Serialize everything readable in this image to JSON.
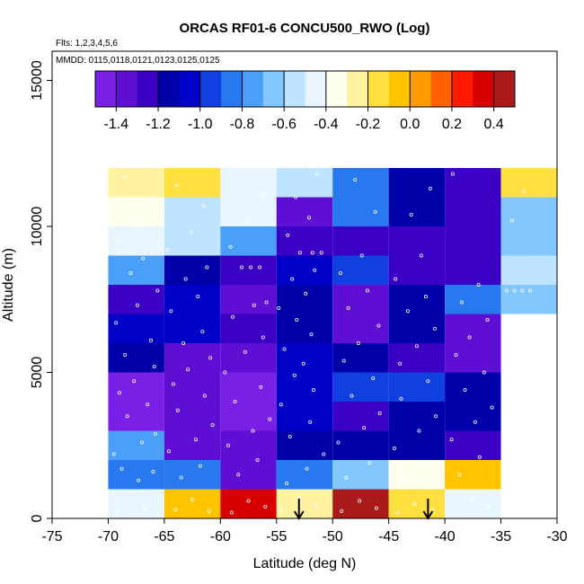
{
  "chart_data": {
    "type": "heatmap",
    "title": "ORCAS RF01-6 CONCU500_RWO (Log)",
    "flights_note": "Flts: 1,2,3,4,5,6",
    "dates_note": "MMDD: 0115,0118,0121,0123,0125,0125",
    "xlabel": "Latitude (deg N)",
    "ylabel": "Altitude (m)",
    "xlim": [
      -75,
      -30
    ],
    "ylim": [
      0,
      16000
    ],
    "x_ticks": [
      -75,
      -70,
      -65,
      -60,
      -55,
      -50,
      -45,
      -40,
      -35,
      -30
    ],
    "y_ticks": [
      0,
      5000,
      10000,
      15000
    ],
    "colorbar": {
      "range": [
        -1.5,
        0.5
      ],
      "ticks": [
        -1.4,
        -1.2,
        -1.0,
        -0.8,
        -0.6,
        -0.4,
        -0.2,
        0.0,
        0.2,
        0.4
      ],
      "tick_labels": [
        "-1.4",
        "-1.2",
        "-1.0",
        "-0.8",
        "-0.6",
        "-0.4",
        "-0.2",
        "0.0",
        "0.2",
        "0.4"
      ],
      "colors": [
        "#7a1fe6",
        "#5f0fd4",
        "#3a00c4",
        "#0000a8",
        "#0000c6",
        "#1040e0",
        "#2878f0",
        "#4aa0f8",
        "#82c8ff",
        "#bfe4ff",
        "#eaf6ff",
        "#fffff0",
        "#fff2a0",
        "#ffe040",
        "#ffc400",
        "#ff9a00",
        "#ff6000",
        "#ff1a00",
        "#d80000",
        "#aa1a1a"
      ]
    },
    "lat_bins": [
      [
        -70,
        -65
      ],
      [
        -65,
        -60
      ],
      [
        -60,
        -55
      ],
      [
        -55,
        -50
      ],
      [
        -50,
        -45
      ],
      [
        -45,
        -40
      ],
      [
        -40,
        -35
      ],
      [
        -35,
        -30
      ]
    ],
    "alt_bins": [
      [
        0,
        1000
      ],
      [
        1000,
        2000
      ],
      [
        2000,
        3000
      ],
      [
        3000,
        4000
      ],
      [
        4000,
        5000
      ],
      [
        5000,
        6000
      ],
      [
        6000,
        7000
      ],
      [
        7000,
        8000
      ],
      [
        8000,
        9000
      ],
      [
        9000,
        10000
      ],
      [
        10000,
        11000
      ],
      [
        11000,
        12000
      ]
    ],
    "values": [
      [
        -0.42,
        -0.1,
        0.3,
        -0.3,
        0.45,
        -0.15,
        -0.5,
        null
      ],
      [
        -0.9,
        -0.9,
        -1.4,
        -0.85,
        -0.7,
        -0.35,
        -0.05,
        null
      ],
      [
        -0.8,
        -1.4,
        -1.4,
        -1.15,
        -1.2,
        -1.2,
        -1.25,
        null
      ],
      [
        -1.45,
        -1.35,
        -1.45,
        -1.05,
        -1.25,
        -1.15,
        -1.1,
        null
      ],
      [
        -1.45,
        -1.4,
        -1.45,
        -1.05,
        -1.0,
        -1.0,
        -1.1,
        null
      ],
      [
        -1.15,
        -1.4,
        -1.3,
        -1.05,
        -1.2,
        -1.25,
        -1.4,
        null
      ],
      [
        -1.05,
        -1.05,
        -1.25,
        -1.1,
        -1.35,
        -1.1,
        -1.35,
        null
      ],
      [
        -1.25,
        -1.05,
        -1.3,
        -1.2,
        -1.35,
        -1.1,
        -0.85,
        -0.7
      ],
      [
        -0.75,
        -1.2,
        -1.25,
        -1.05,
        -0.95,
        -1.25,
        -1.25,
        -0.55
      ],
      [
        -0.45,
        -0.6,
        -0.75,
        -1.25,
        -1.25,
        -1.25,
        -1.25,
        -0.65
      ],
      [
        -0.35,
        -0.55,
        -0.45,
        -1.3,
        -0.9,
        -1.1,
        -1.25,
        -0.7
      ],
      [
        -0.3,
        -0.2,
        -0.45,
        -0.55,
        -0.9,
        -1.1,
        -1.25,
        -0.2
      ]
    ],
    "arrows": [
      {
        "lat": -53,
        "direction": "down"
      },
      {
        "lat": -41.5,
        "direction": "down"
      }
    ],
    "observation_points": [
      [
        -69.2,
        200
      ],
      [
        -68.1,
        500
      ],
      [
        -66.8,
        350
      ],
      [
        -65.5,
        800
      ],
      [
        -67.3,
        1300
      ],
      [
        -68.8,
        1700
      ],
      [
        -66.0,
        1600
      ],
      [
        -69.5,
        2200
      ],
      [
        -67.0,
        2600
      ],
      [
        -65.8,
        2900
      ],
      [
        -68.3,
        3500
      ],
      [
        -66.5,
        3900
      ],
      [
        -69.0,
        4300
      ],
      [
        -67.7,
        4700
      ],
      [
        -65.9,
        5200
      ],
      [
        -68.5,
        5600
      ],
      [
        -66.2,
        6100
      ],
      [
        -69.3,
        6700
      ],
      [
        -67.4,
        7300
      ],
      [
        -65.6,
        7800
      ],
      [
        -68.0,
        8400
      ],
      [
        -66.9,
        8900
      ],
      [
        -69.1,
        9500
      ],
      [
        -67.5,
        10100
      ],
      [
        -66.1,
        11000
      ],
      [
        -68.6,
        11700
      ],
      [
        -64.0,
        300
      ],
      [
        -62.5,
        650
      ],
      [
        -61.0,
        250
      ],
      [
        -63.5,
        1400
      ],
      [
        -61.8,
        1800
      ],
      [
        -64.6,
        2300
      ],
      [
        -62.2,
        2700
      ],
      [
        -60.7,
        3200
      ],
      [
        -63.8,
        3700
      ],
      [
        -61.4,
        4200
      ],
      [
        -64.2,
        4600
      ],
      [
        -62.9,
        5100
      ],
      [
        -60.9,
        5500
      ],
      [
        -63.3,
        6000
      ],
      [
        -61.6,
        6400
      ],
      [
        -64.4,
        7100
      ],
      [
        -62.0,
        7600
      ],
      [
        -63.1,
        8200
      ],
      [
        -61.2,
        8600
      ],
      [
        -64.7,
        9200
      ],
      [
        -62.6,
        9800
      ],
      [
        -61.5,
        10700
      ],
      [
        -63.9,
        11400
      ],
      [
        -59.0,
        200
      ],
      [
        -57.5,
        600
      ],
      [
        -56.0,
        400
      ],
      [
        -58.4,
        1500
      ],
      [
        -56.7,
        2000
      ],
      [
        -59.3,
        2500
      ],
      [
        -57.1,
        3000
      ],
      [
        -55.6,
        3400
      ],
      [
        -58.7,
        4000
      ],
      [
        -56.4,
        4500
      ],
      [
        -59.6,
        5000
      ],
      [
        -57.8,
        5700
      ],
      [
        -56.2,
        6200
      ],
      [
        -58.9,
        6900
      ],
      [
        -57.0,
        7300
      ],
      [
        -55.9,
        7400
      ],
      [
        -58.1,
        8600
      ],
      [
        -57.3,
        8600
      ],
      [
        -56.5,
        8600
      ],
      [
        -59.1,
        9300
      ],
      [
        -57.6,
        10200
      ],
      [
        -56.3,
        11100
      ],
      [
        -54.5,
        300
      ],
      [
        -53.0,
        700
      ],
      [
        -51.5,
        450
      ],
      [
        -54.1,
        1200
      ],
      [
        -52.3,
        1700
      ],
      [
        -50.8,
        2200
      ],
      [
        -53.8,
        2800
      ],
      [
        -52.0,
        3300
      ],
      [
        -54.6,
        3900
      ],
      [
        -51.7,
        4400
      ],
      [
        -53.4,
        4900
      ],
      [
        -52.6,
        5300
      ],
      [
        -54.3,
        5800
      ],
      [
        -51.9,
        6300
      ],
      [
        -53.2,
        6800
      ],
      [
        -54.8,
        7200
      ],
      [
        -52.4,
        7700
      ],
      [
        -53.6,
        8200
      ],
      [
        -51.6,
        8500
      ],
      [
        -52.9,
        9100
      ],
      [
        -51.8,
        9100
      ],
      [
        -51.0,
        9100
      ],
      [
        -54.0,
        9700
      ],
      [
        -52.1,
        10300
      ],
      [
        -53.3,
        11000
      ],
      [
        -51.4,
        11800
      ],
      [
        -49.2,
        250
      ],
      [
        -47.6,
        600
      ],
      [
        -46.1,
        350
      ],
      [
        -48.8,
        1400
      ],
      [
        -46.7,
        1900
      ],
      [
        -49.5,
        2600
      ],
      [
        -47.2,
        3100
      ],
      [
        -45.8,
        3600
      ],
      [
        -48.3,
        4200
      ],
      [
        -46.4,
        4800
      ],
      [
        -49.0,
        5400
      ],
      [
        -47.7,
        6000
      ],
      [
        -45.9,
        6600
      ],
      [
        -48.6,
        7200
      ],
      [
        -46.9,
        7800
      ],
      [
        -49.3,
        8400
      ],
      [
        -47.4,
        9000
      ],
      [
        -46.2,
        10500
      ],
      [
        -48.0,
        11600
      ],
      [
        -44.2,
        200
      ],
      [
        -42.7,
        500
      ],
      [
        -41.1,
        300
      ],
      [
        -43.6,
        1300
      ],
      [
        -41.9,
        1800
      ],
      [
        -44.5,
        2400
      ],
      [
        -42.3,
        3000
      ],
      [
        -40.8,
        3500
      ],
      [
        -43.9,
        4100
      ],
      [
        -41.5,
        4700
      ],
      [
        -44.0,
        5300
      ],
      [
        -42.5,
        5900
      ],
      [
        -40.9,
        6500
      ],
      [
        -43.3,
        7100
      ],
      [
        -41.7,
        7600
      ],
      [
        -44.4,
        8200
      ],
      [
        -42.1,
        9000
      ],
      [
        -43.0,
        10400
      ],
      [
        -41.3,
        11300
      ],
      [
        -39.2,
        300
      ],
      [
        -37.6,
        650
      ],
      [
        -36.1,
        400
      ],
      [
        -38.7,
        1500
      ],
      [
        -36.9,
        2100
      ],
      [
        -39.4,
        2700
      ],
      [
        -37.3,
        3300
      ],
      [
        -35.8,
        3800
      ],
      [
        -38.2,
        4400
      ],
      [
        -36.5,
        5000
      ],
      [
        -39.0,
        5600
      ],
      [
        -37.8,
        6200
      ],
      [
        -36.2,
        6800
      ],
      [
        -38.5,
        7400
      ],
      [
        -37.0,
        8000
      ],
      [
        -39.3,
        11800
      ],
      [
        -34.5,
        7800
      ],
      [
        -33.8,
        7800
      ],
      [
        -33.1,
        7800
      ],
      [
        -32.4,
        7800
      ],
      [
        -34.0,
        10200
      ],
      [
        -33.0,
        11200
      ]
    ]
  }
}
